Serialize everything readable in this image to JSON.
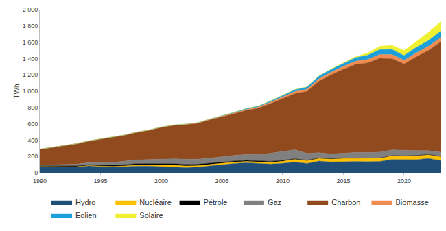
{
  "chart_data": {
    "type": "area",
    "stacked": true,
    "y_label": "TWh",
    "legend": "bottom",
    "grid": false,
    "x": [
      1990,
      1991,
      1992,
      1993,
      1994,
      1995,
      1996,
      1997,
      1998,
      1999,
      2000,
      2001,
      2002,
      2003,
      2004,
      2005,
      2006,
      2007,
      2008,
      2009,
      2010,
      2011,
      2012,
      2013,
      2014,
      2015,
      2016,
      2017,
      2018,
      2019,
      2020,
      2021,
      2022,
      2023
    ],
    "xlim": [
      1990,
      2023
    ],
    "xticks": [
      1990,
      1995,
      2000,
      2005,
      2010,
      2015,
      2020
    ],
    "ylim": [
      0,
      2000
    ],
    "yticks": [
      0,
      200,
      400,
      600,
      800,
      {
        "value": 1000,
        "label": "1 000"
      },
      {
        "value": 1200,
        "label": "1 200"
      },
      {
        "value": 1400,
        "label": "1 400"
      },
      {
        "value": 1600,
        "label": "1 600"
      },
      {
        "value": 1800,
        "label": "1 800"
      },
      {
        "value": 2000,
        "label": "2 000"
      }
    ],
    "series": [
      {
        "name": "Hydro",
        "color": "#1f4e79",
        "values": [
          72,
          71,
          70,
          70,
          83,
          73,
          69,
          75,
          82,
          81,
          75,
          74,
          64,
          69,
          85,
          100,
          113,
          122,
          115,
          107,
          115,
          131,
          114,
          142,
          132,
          138,
          138,
          136,
          139,
          162,
          161,
          160,
          175,
          150
        ]
      },
      {
        "name": "Nucléaire",
        "color": "#ffc000",
        "values": [
          6,
          5,
          7,
          5,
          6,
          8,
          9,
          10,
          12,
          13,
          17,
          19,
          19,
          18,
          17,
          17,
          17,
          17,
          15,
          19,
          26,
          33,
          33,
          34,
          36,
          38,
          38,
          38,
          39,
          45,
          43,
          47,
          46,
          48
        ]
      },
      {
        "name": "Pétrole",
        "color": "#000000",
        "values": [
          8,
          9,
          10,
          10,
          10,
          12,
          14,
          15,
          17,
          18,
          19,
          18,
          20,
          17,
          15,
          14,
          13,
          13,
          13,
          13,
          10,
          7,
          6,
          4,
          3,
          3,
          3,
          3,
          3,
          3,
          3,
          4,
          4,
          4
        ]
      },
      {
        "name": "Gaz",
        "color": "#808080",
        "values": [
          10,
          13,
          16,
          20,
          25,
          30,
          35,
          42,
          46,
          50,
          55,
          59,
          62,
          62,
          62,
          68,
          70,
          72,
          79,
          100,
          110,
          110,
          85,
          65,
          61,
          60,
          68,
          70,
          72,
          70,
          66,
          60,
          45,
          50
        ]
      },
      {
        "name": "Charbon",
        "color": "#914a1e",
        "values": [
          192,
          210,
          230,
          250,
          265,
          290,
          310,
          320,
          340,
          360,
          390,
          410,
          425,
          440,
          470,
          485,
          510,
          540,
          570,
          610,
          650,
          690,
          760,
          880,
          970,
          1030,
          1080,
          1100,
          1150,
          1120,
          1060,
          1150,
          1230,
          1350
        ]
      },
      {
        "name": "Biomasse",
        "color": "#f08c50",
        "values": [
          0,
          0,
          0,
          0,
          0,
          0,
          0,
          0,
          0,
          1,
          2,
          3,
          4,
          5,
          6,
          8,
          10,
          12,
          14,
          16,
          20,
          24,
          26,
          28,
          32,
          36,
          40,
          42,
          46,
          50,
          45,
          48,
          50,
          52
        ]
      },
      {
        "name": "Eolien",
        "color": "#1ca0dc",
        "values": [
          0,
          0,
          0,
          0,
          0,
          1,
          1,
          1,
          1,
          1,
          2,
          2,
          2,
          3,
          4,
          6,
          8,
          11,
          13,
          16,
          20,
          24,
          28,
          33,
          34,
          33,
          44,
          53,
          62,
          63,
          60,
          68,
          70,
          82
        ]
      },
      {
        "name": "Solaire",
        "color": "#f0f032",
        "values": [
          0,
          0,
          0,
          0,
          0,
          0,
          0,
          0,
          0,
          0,
          0,
          0,
          0,
          0,
          0,
          0,
          0,
          0,
          0,
          0,
          0,
          1,
          2,
          3,
          5,
          7,
          12,
          26,
          40,
          50,
          61,
          70,
          100,
          115
        ]
      }
    ]
  }
}
